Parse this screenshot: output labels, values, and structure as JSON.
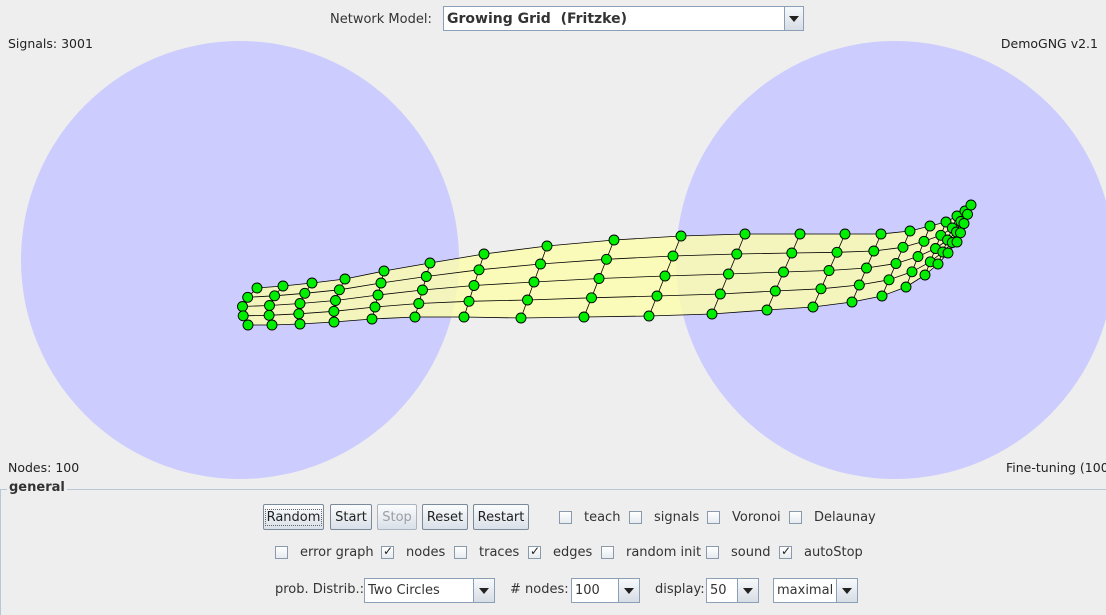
{
  "network_model": {
    "label": "Network Model:",
    "value": "Growing Grid  (Fritzke)"
  },
  "canvas": {
    "signals": "Signals: 3001",
    "version": "DemoGNG v2.1",
    "nodes": "Nodes: 100",
    "status": "Fine-tuning (100",
    "colors": {
      "region": "#ccccff",
      "mesh_fill": "#ffffaa",
      "node": "#00ee00",
      "background": "#eeeeee"
    }
  },
  "general": {
    "title": "general",
    "buttons": {
      "random": "Random",
      "start": "Start",
      "stop": "Stop",
      "reset": "Reset",
      "restart": "Restart"
    },
    "checkboxes": {
      "teach": {
        "label": "teach",
        "checked": false
      },
      "signals": {
        "label": "signals",
        "checked": false
      },
      "voronoi": {
        "label": "Voronoi",
        "checked": false
      },
      "delaunay": {
        "label": "Delaunay",
        "checked": false
      },
      "error_graph": {
        "label": "error graph",
        "checked": false
      },
      "nodes": {
        "label": "nodes",
        "checked": true
      },
      "traces": {
        "label": "traces",
        "checked": false
      },
      "edges": {
        "label": "edges",
        "checked": true
      },
      "random_init": {
        "label": "random init",
        "checked": false
      },
      "sound": {
        "label": "sound",
        "checked": false
      },
      "auto_stop": {
        "label": "autoStop",
        "checked": true
      }
    },
    "prob_distrib": {
      "label": "prob. Distrib.:",
      "value": "Two Circles"
    },
    "num_nodes": {
      "label": "# nodes:",
      "value": "100"
    },
    "display": {
      "label": "display:",
      "value": "50"
    },
    "speed": {
      "value": "maximal"
    }
  }
}
